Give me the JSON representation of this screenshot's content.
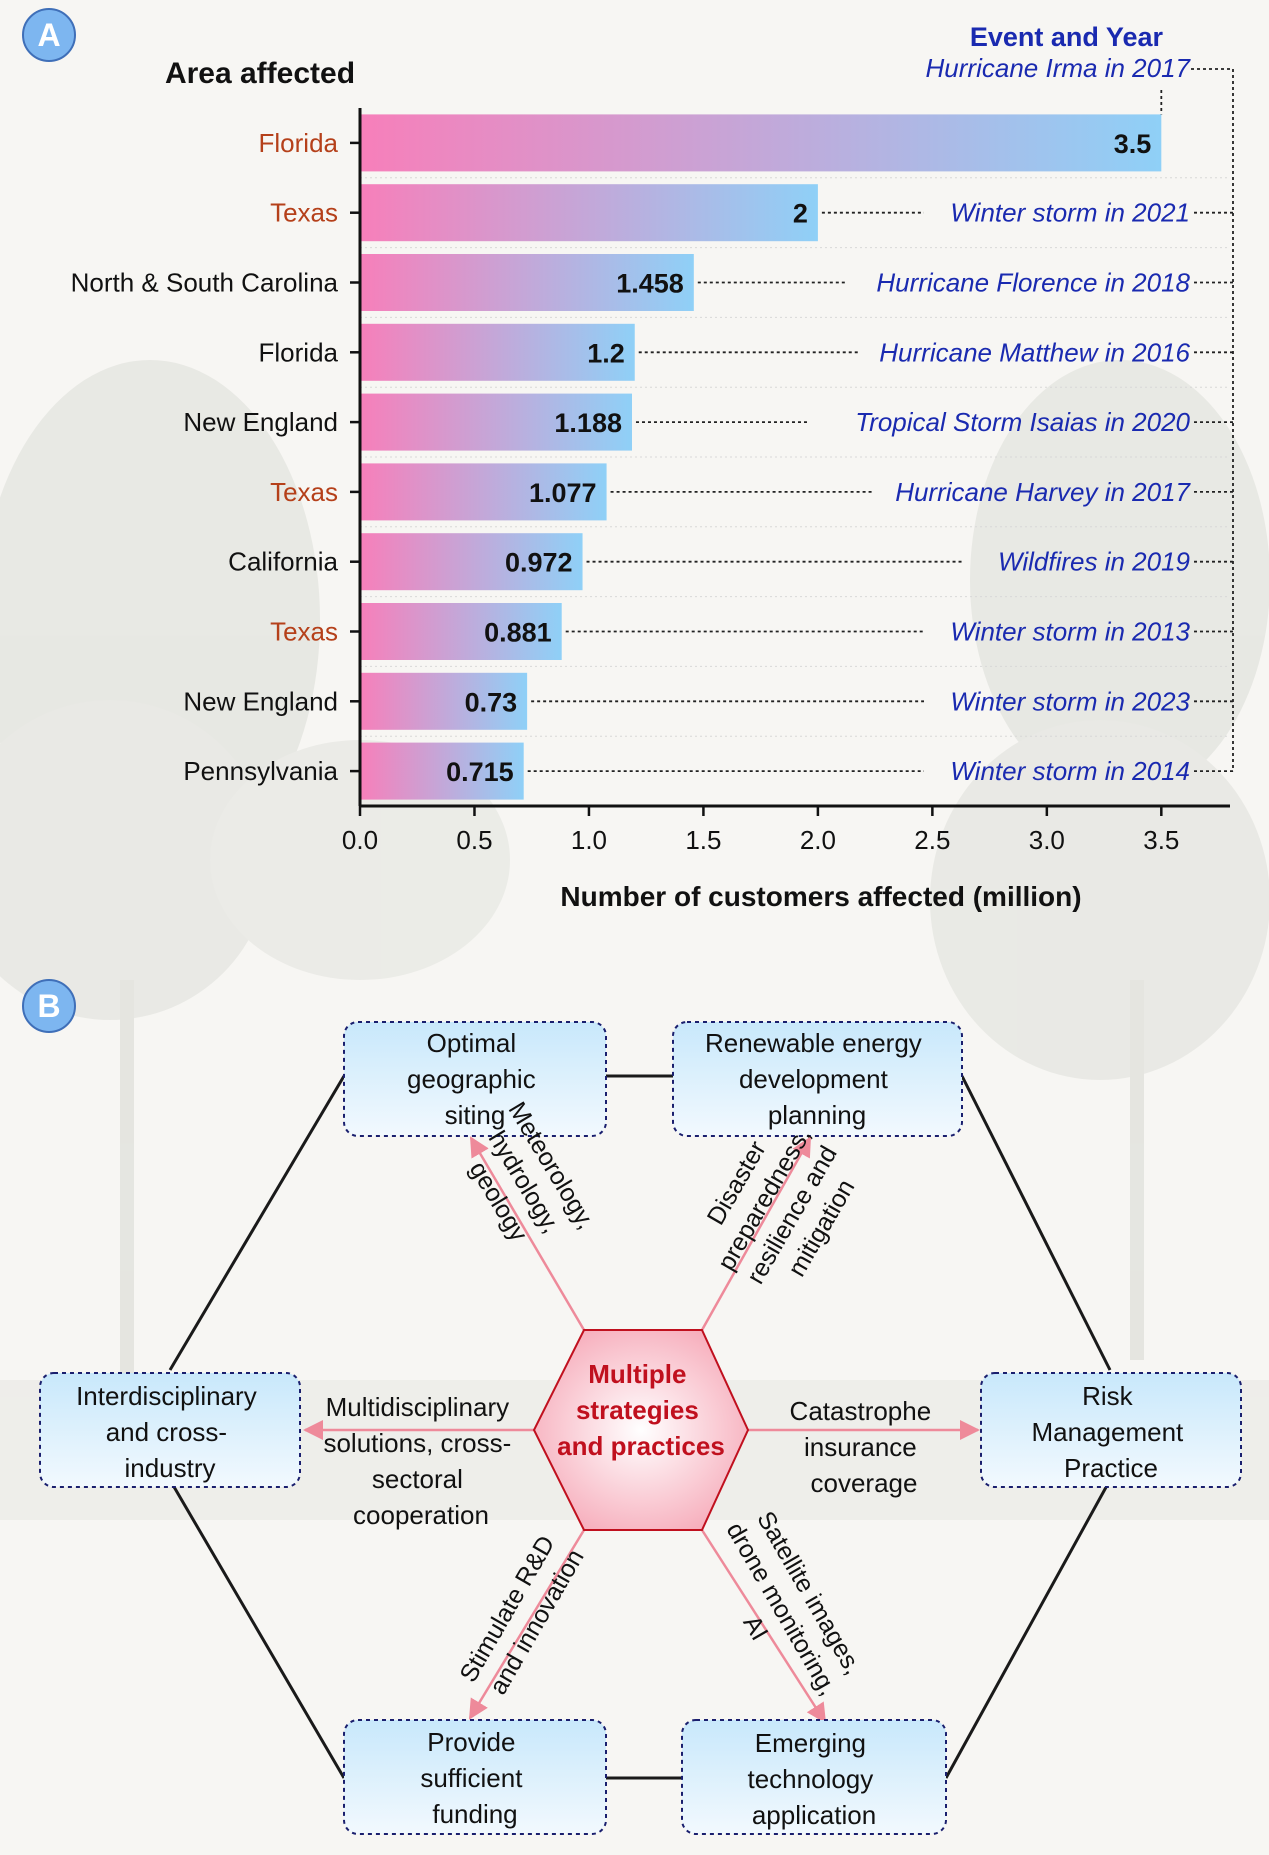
{
  "panel_a": {
    "badge": "A"
  },
  "panel_b": {
    "badge": "B"
  },
  "chart_data": {
    "type": "bar",
    "orientation": "horizontal",
    "y_title": "Area affected",
    "event_title": "Event and Year",
    "xlabel": "Number of customers affected (million)",
    "xlim": [
      0,
      3.8
    ],
    "xticks": [
      0.0,
      0.5,
      1.0,
      1.5,
      2.0,
      2.5,
      3.0,
      3.5
    ],
    "categories": [
      "Florida",
      "Texas",
      "North & South Carolina",
      "Florida",
      "New England",
      "Texas",
      "California",
      "Texas",
      "New England",
      "Pennsylvania"
    ],
    "values": [
      3.5,
      2,
      1.458,
      1.2,
      1.188,
      1.077,
      0.972,
      0.881,
      0.73,
      0.715
    ],
    "value_labels": [
      "3.5",
      "2",
      "1.458",
      "1.2",
      "1.188",
      "1.077",
      "0.972",
      "0.881",
      "0.73",
      "0.715"
    ],
    "events": [
      "Hurricane Irma in 2017",
      "Winter storm in 2021",
      "Hurricane Florence in 2018",
      "Hurricane Matthew in 2016",
      "Tropical Storm Isaias in 2020",
      "Hurricane Harvey in 2017",
      "Wildfires in 2019",
      "Winter storm in 2013",
      "Winter storm in 2023",
      "Winter storm in 2014"
    ],
    "category_colors": [
      "#b5401a",
      "#b5401a",
      "#111111",
      "#111111",
      "#111111",
      "#b5401a",
      "#111111",
      "#b5401a",
      "#111111",
      "#111111"
    ],
    "gradient": [
      "#f77fba",
      "#8fd0f7"
    ],
    "event_color": "#1a2ab0"
  },
  "diagram": {
    "center": [
      "Multiple",
      "strategies",
      "and practices"
    ],
    "nodes": {
      "siting": [
        "Optimal",
        "geographic",
        "siting"
      ],
      "renewable": [
        "Renewable energy",
        "development",
        "planning"
      ],
      "interdisciplinary": [
        "Interdisciplinary",
        "and cross-",
        "industry"
      ],
      "risk": [
        "Risk",
        "Management",
        "Practice"
      ],
      "funding": [
        "Provide",
        "sufficient",
        "funding"
      ],
      "technology": [
        "Emerging",
        "technology",
        "application"
      ]
    },
    "edge_labels": {
      "siting": [
        "Meteorology,",
        "hydrology,",
        "geology"
      ],
      "renewable": [
        "Disaster",
        "preparedness,",
        "resilience and",
        "mitigation"
      ],
      "interdisciplinary": [
        "Multidisciplinary",
        "solutions, cross-",
        "sectoral",
        "cooperation"
      ],
      "risk": [
        "Catastrophe",
        "insurance",
        "coverage"
      ],
      "funding": [
        "Stimulate R&D",
        "and innovation"
      ],
      "technology": [
        "Satellite images,",
        "drone monitoring,",
        "AI"
      ]
    },
    "colors": {
      "arrow": "#ee8a9a",
      "center_fill": "#f6a9b8",
      "center_text": "#c0101e",
      "node_border": "#1a1f6e",
      "node_fill_top": "#c8e8fb",
      "node_fill_bottom": "#f2f9fe"
    }
  }
}
